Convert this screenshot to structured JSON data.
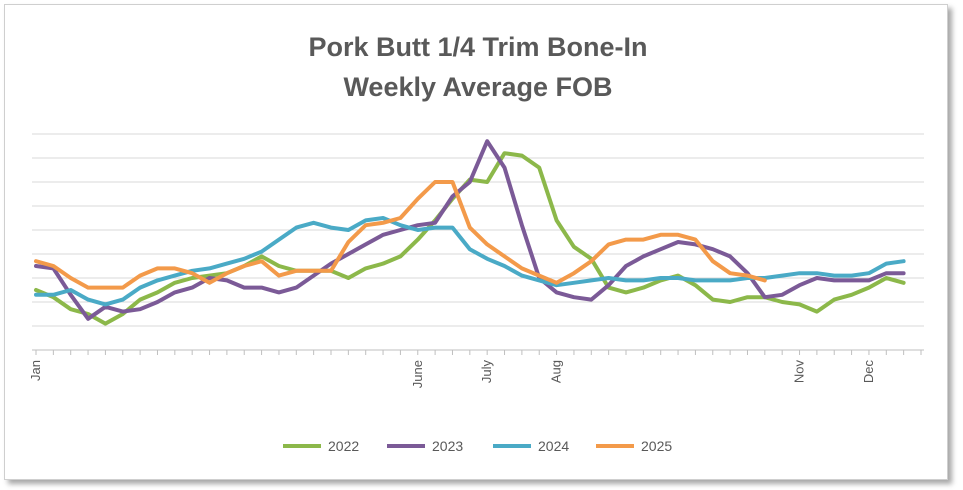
{
  "chart_data": {
    "type": "line",
    "title": "Pork Butt 1/4 Trim Bone-In",
    "subtitle": "Weekly Average FOB",
    "xlabel": "",
    "ylabel": "",
    "grid": true,
    "legend": "bottom",
    "x_weeks": 52,
    "ylim": [
      0,
      9
    ],
    "x_tick_labels": [
      {
        "label": "Jan",
        "week": 1
      },
      {
        "label": "June",
        "week": 23
      },
      {
        "label": "July",
        "week": 27
      },
      {
        "label": "Aug",
        "week": 31
      },
      {
        "label": "Nov",
        "week": 45
      },
      {
        "label": "Dec",
        "week": 49
      }
    ],
    "series": [
      {
        "name": "2022",
        "color": "#8cb84a",
        "values": [
          2.5,
          2.2,
          1.7,
          1.5,
          1.1,
          1.5,
          2.1,
          2.4,
          2.8,
          3.0,
          3.1,
          3.2,
          3.5,
          3.9,
          3.5,
          3.3,
          3.3,
          3.3,
          3.0,
          3.4,
          3.6,
          3.9,
          4.6,
          5.4,
          6.3,
          7.1,
          7.0,
          8.2,
          8.1,
          7.6,
          5.4,
          4.3,
          3.8,
          2.6,
          2.4,
          2.6,
          2.9,
          3.1,
          2.7,
          2.1,
          2.0,
          2.2,
          2.2,
          2.0,
          1.9,
          1.6,
          2.1,
          2.3,
          2.6,
          3.0,
          2.8
        ]
      },
      {
        "name": "2023",
        "color": "#7b5a97",
        "values": [
          3.5,
          3.4,
          2.3,
          1.3,
          1.8,
          1.6,
          1.7,
          2.0,
          2.4,
          2.6,
          3.0,
          2.9,
          2.6,
          2.6,
          2.4,
          2.6,
          3.1,
          3.6,
          4.0,
          4.4,
          4.8,
          5.0,
          5.2,
          5.3,
          6.4,
          7.0,
          8.7,
          7.6,
          5.2,
          3.0,
          2.4,
          2.2,
          2.1,
          2.7,
          3.5,
          3.9,
          4.2,
          4.5,
          4.4,
          4.2,
          3.9,
          3.2,
          2.2,
          2.3,
          2.7,
          3.0,
          2.9,
          2.9,
          2.9,
          3.2,
          3.2
        ]
      },
      {
        "name": "2024",
        "color": "#4aaac6",
        "values": [
          2.3,
          2.3,
          2.5,
          2.1,
          1.9,
          2.1,
          2.6,
          2.9,
          3.1,
          3.3,
          3.4,
          3.6,
          3.8,
          4.1,
          4.6,
          5.1,
          5.3,
          5.1,
          5.0,
          5.4,
          5.5,
          5.2,
          5.0,
          5.1,
          5.1,
          4.2,
          3.8,
          3.5,
          3.1,
          2.9,
          2.7,
          2.8,
          2.9,
          3.0,
          2.9,
          2.9,
          3.0,
          3.0,
          2.9,
          2.9,
          2.9,
          3.0,
          3.0,
          3.1,
          3.2,
          3.2,
          3.1,
          3.1,
          3.2,
          3.6,
          3.7
        ]
      },
      {
        "name": "2025",
        "color": "#f39a4a",
        "values": [
          3.7,
          3.5,
          3.0,
          2.6,
          2.6,
          2.6,
          3.1,
          3.4,
          3.4,
          3.2,
          2.8,
          3.2,
          3.5,
          3.7,
          3.1,
          3.3,
          3.3,
          3.3,
          4.5,
          5.2,
          5.3,
          5.5,
          6.3,
          7.0,
          7.0,
          5.1,
          4.4,
          3.9,
          3.4,
          3.1,
          2.8,
          3.2,
          3.7,
          4.4,
          4.6,
          4.6,
          4.8,
          4.8,
          4.6,
          3.7,
          3.2,
          3.1,
          2.9
        ]
      }
    ]
  }
}
